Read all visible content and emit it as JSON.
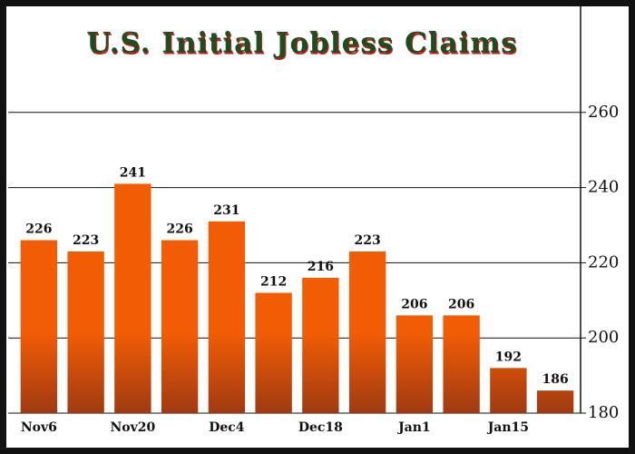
{
  "chart_data": {
    "type": "bar",
    "title": "U.S. Initial Jobless Claims",
    "categories": [
      "Nov6",
      null,
      "Nov20",
      null,
      "Dec4",
      null,
      "Dec18",
      null,
      "Jan1",
      null,
      "Jan15",
      null
    ],
    "values": [
      226,
      223,
      241,
      226,
      231,
      212,
      216,
      223,
      206,
      206,
      192,
      186
    ],
    "color": "#f25c05",
    "ylim": [
      180,
      287
    ],
    "yticks": [
      180,
      200,
      220,
      240,
      260
    ],
    "grid": true,
    "y_axis_side": "right"
  }
}
